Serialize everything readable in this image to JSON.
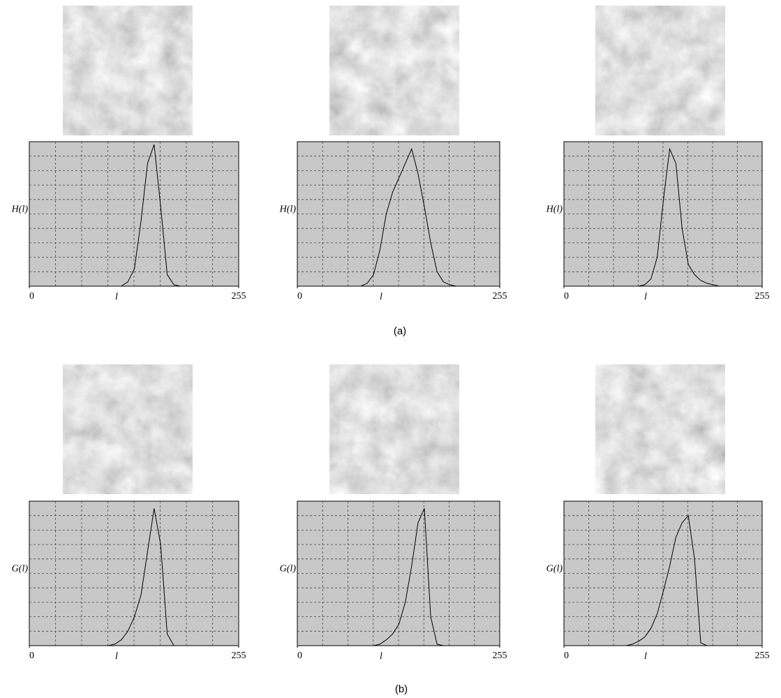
{
  "chart_data": [
    {
      "type": "line",
      "ylabel": "H(l)",
      "xlabel": "l",
      "xlim": [
        0,
        255
      ],
      "xticks": [
        0,
        255
      ],
      "ylim": [
        0,
        100
      ],
      "grid": true,
      "color": "#000000",
      "x": [
        0,
        8,
        16,
        24,
        32,
        40,
        48,
        56,
        64,
        72,
        80,
        88,
        96,
        104,
        112,
        120,
        128,
        136,
        144,
        152,
        160,
        168,
        176,
        184,
        192,
        200,
        208,
        216,
        224,
        232,
        240,
        248,
        255
      ],
      "values": [
        0,
        0,
        0,
        0,
        0,
        0,
        0,
        0,
        0,
        0,
        0,
        0,
        0,
        0,
        0,
        3,
        12,
        45,
        85,
        98,
        55,
        8,
        1,
        0,
        0,
        0,
        0,
        0,
        0,
        0,
        0,
        0,
        0
      ]
    },
    {
      "type": "line",
      "ylabel": "H(l)",
      "xlabel": "l",
      "xlim": [
        0,
        255
      ],
      "xticks": [
        0,
        255
      ],
      "ylim": [
        0,
        100
      ],
      "grid": true,
      "color": "#000000",
      "x": [
        0,
        8,
        16,
        24,
        32,
        40,
        48,
        56,
        64,
        72,
        80,
        88,
        96,
        104,
        112,
        120,
        128,
        136,
        144,
        152,
        160,
        168,
        176,
        184,
        192,
        200,
        208,
        216,
        224,
        232,
        240,
        248,
        255
      ],
      "values": [
        0,
        0,
        0,
        0,
        0,
        0,
        0,
        0,
        0,
        0,
        0,
        2,
        8,
        25,
        50,
        65,
        75,
        85,
        95,
        78,
        55,
        30,
        10,
        3,
        1,
        0,
        0,
        0,
        0,
        0,
        0,
        0,
        0
      ]
    },
    {
      "type": "line",
      "ylabel": "H(l)",
      "xlabel": "l",
      "xlim": [
        0,
        255
      ],
      "xticks": [
        0,
        255
      ],
      "ylim": [
        0,
        100
      ],
      "grid": true,
      "color": "#000000",
      "x": [
        0,
        8,
        16,
        24,
        32,
        40,
        48,
        56,
        64,
        72,
        80,
        88,
        96,
        104,
        112,
        120,
        128,
        136,
        144,
        152,
        160,
        168,
        176,
        184,
        192,
        200,
        208,
        216,
        224,
        232,
        240,
        248,
        255
      ],
      "values": [
        0,
        0,
        0,
        0,
        0,
        0,
        0,
        0,
        0,
        0,
        0,
        0,
        0,
        1,
        5,
        20,
        60,
        95,
        85,
        40,
        15,
        8,
        4,
        2,
        1,
        0,
        0,
        0,
        0,
        0,
        0,
        0,
        0
      ]
    },
    {
      "type": "line",
      "ylabel": "G(l)",
      "xlabel": "l",
      "xlim": [
        0,
        255
      ],
      "xticks": [
        0,
        255
      ],
      "ylim": [
        0,
        100
      ],
      "grid": true,
      "color": "#000000",
      "x": [
        0,
        8,
        16,
        24,
        32,
        40,
        48,
        56,
        64,
        72,
        80,
        88,
        96,
        104,
        112,
        120,
        128,
        136,
        144,
        152,
        160,
        168,
        176,
        184,
        192,
        200,
        208,
        216,
        224,
        232,
        240,
        248,
        255
      ],
      "values": [
        0,
        0,
        0,
        0,
        0,
        0,
        0,
        0,
        0,
        0,
        0,
        0,
        0,
        1,
        4,
        10,
        20,
        35,
        65,
        95,
        70,
        8,
        0,
        0,
        0,
        0,
        0,
        0,
        0,
        0,
        0,
        0,
        0
      ]
    },
    {
      "type": "line",
      "ylabel": "G(l)",
      "xlabel": "l",
      "xlim": [
        0,
        255
      ],
      "xticks": [
        0,
        255
      ],
      "ylim": [
        0,
        100
      ],
      "grid": true,
      "color": "#000000",
      "x": [
        0,
        8,
        16,
        24,
        32,
        40,
        48,
        56,
        64,
        72,
        80,
        88,
        96,
        104,
        112,
        120,
        128,
        136,
        144,
        152,
        160,
        168,
        176,
        184,
        192,
        200,
        208,
        216,
        224,
        232,
        240,
        248,
        255
      ],
      "values": [
        0,
        0,
        0,
        0,
        0,
        0,
        0,
        0,
        0,
        0,
        0,
        0,
        0,
        1,
        4,
        8,
        15,
        30,
        55,
        85,
        95,
        20,
        1,
        0,
        0,
        0,
        0,
        0,
        0,
        0,
        0,
        0,
        0
      ]
    },
    {
      "type": "line",
      "ylabel": "G(l)",
      "xlabel": "l",
      "xlim": [
        0,
        255
      ],
      "xticks": [
        0,
        255
      ],
      "ylim": [
        0,
        100
      ],
      "grid": true,
      "color": "#000000",
      "x": [
        0,
        8,
        16,
        24,
        32,
        40,
        48,
        56,
        64,
        72,
        80,
        88,
        96,
        104,
        112,
        120,
        128,
        136,
        144,
        152,
        160,
        168,
        176,
        184,
        192,
        200,
        208,
        216,
        224,
        232,
        240,
        248,
        255
      ],
      "values": [
        0,
        0,
        0,
        0,
        0,
        0,
        0,
        0,
        0,
        0,
        0,
        1,
        3,
        6,
        12,
        22,
        38,
        55,
        75,
        85,
        90,
        60,
        2,
        0,
        0,
        0,
        0,
        0,
        0,
        0,
        0,
        0,
        0
      ]
    }
  ],
  "captions": [
    "(a)",
    "(b)"
  ]
}
